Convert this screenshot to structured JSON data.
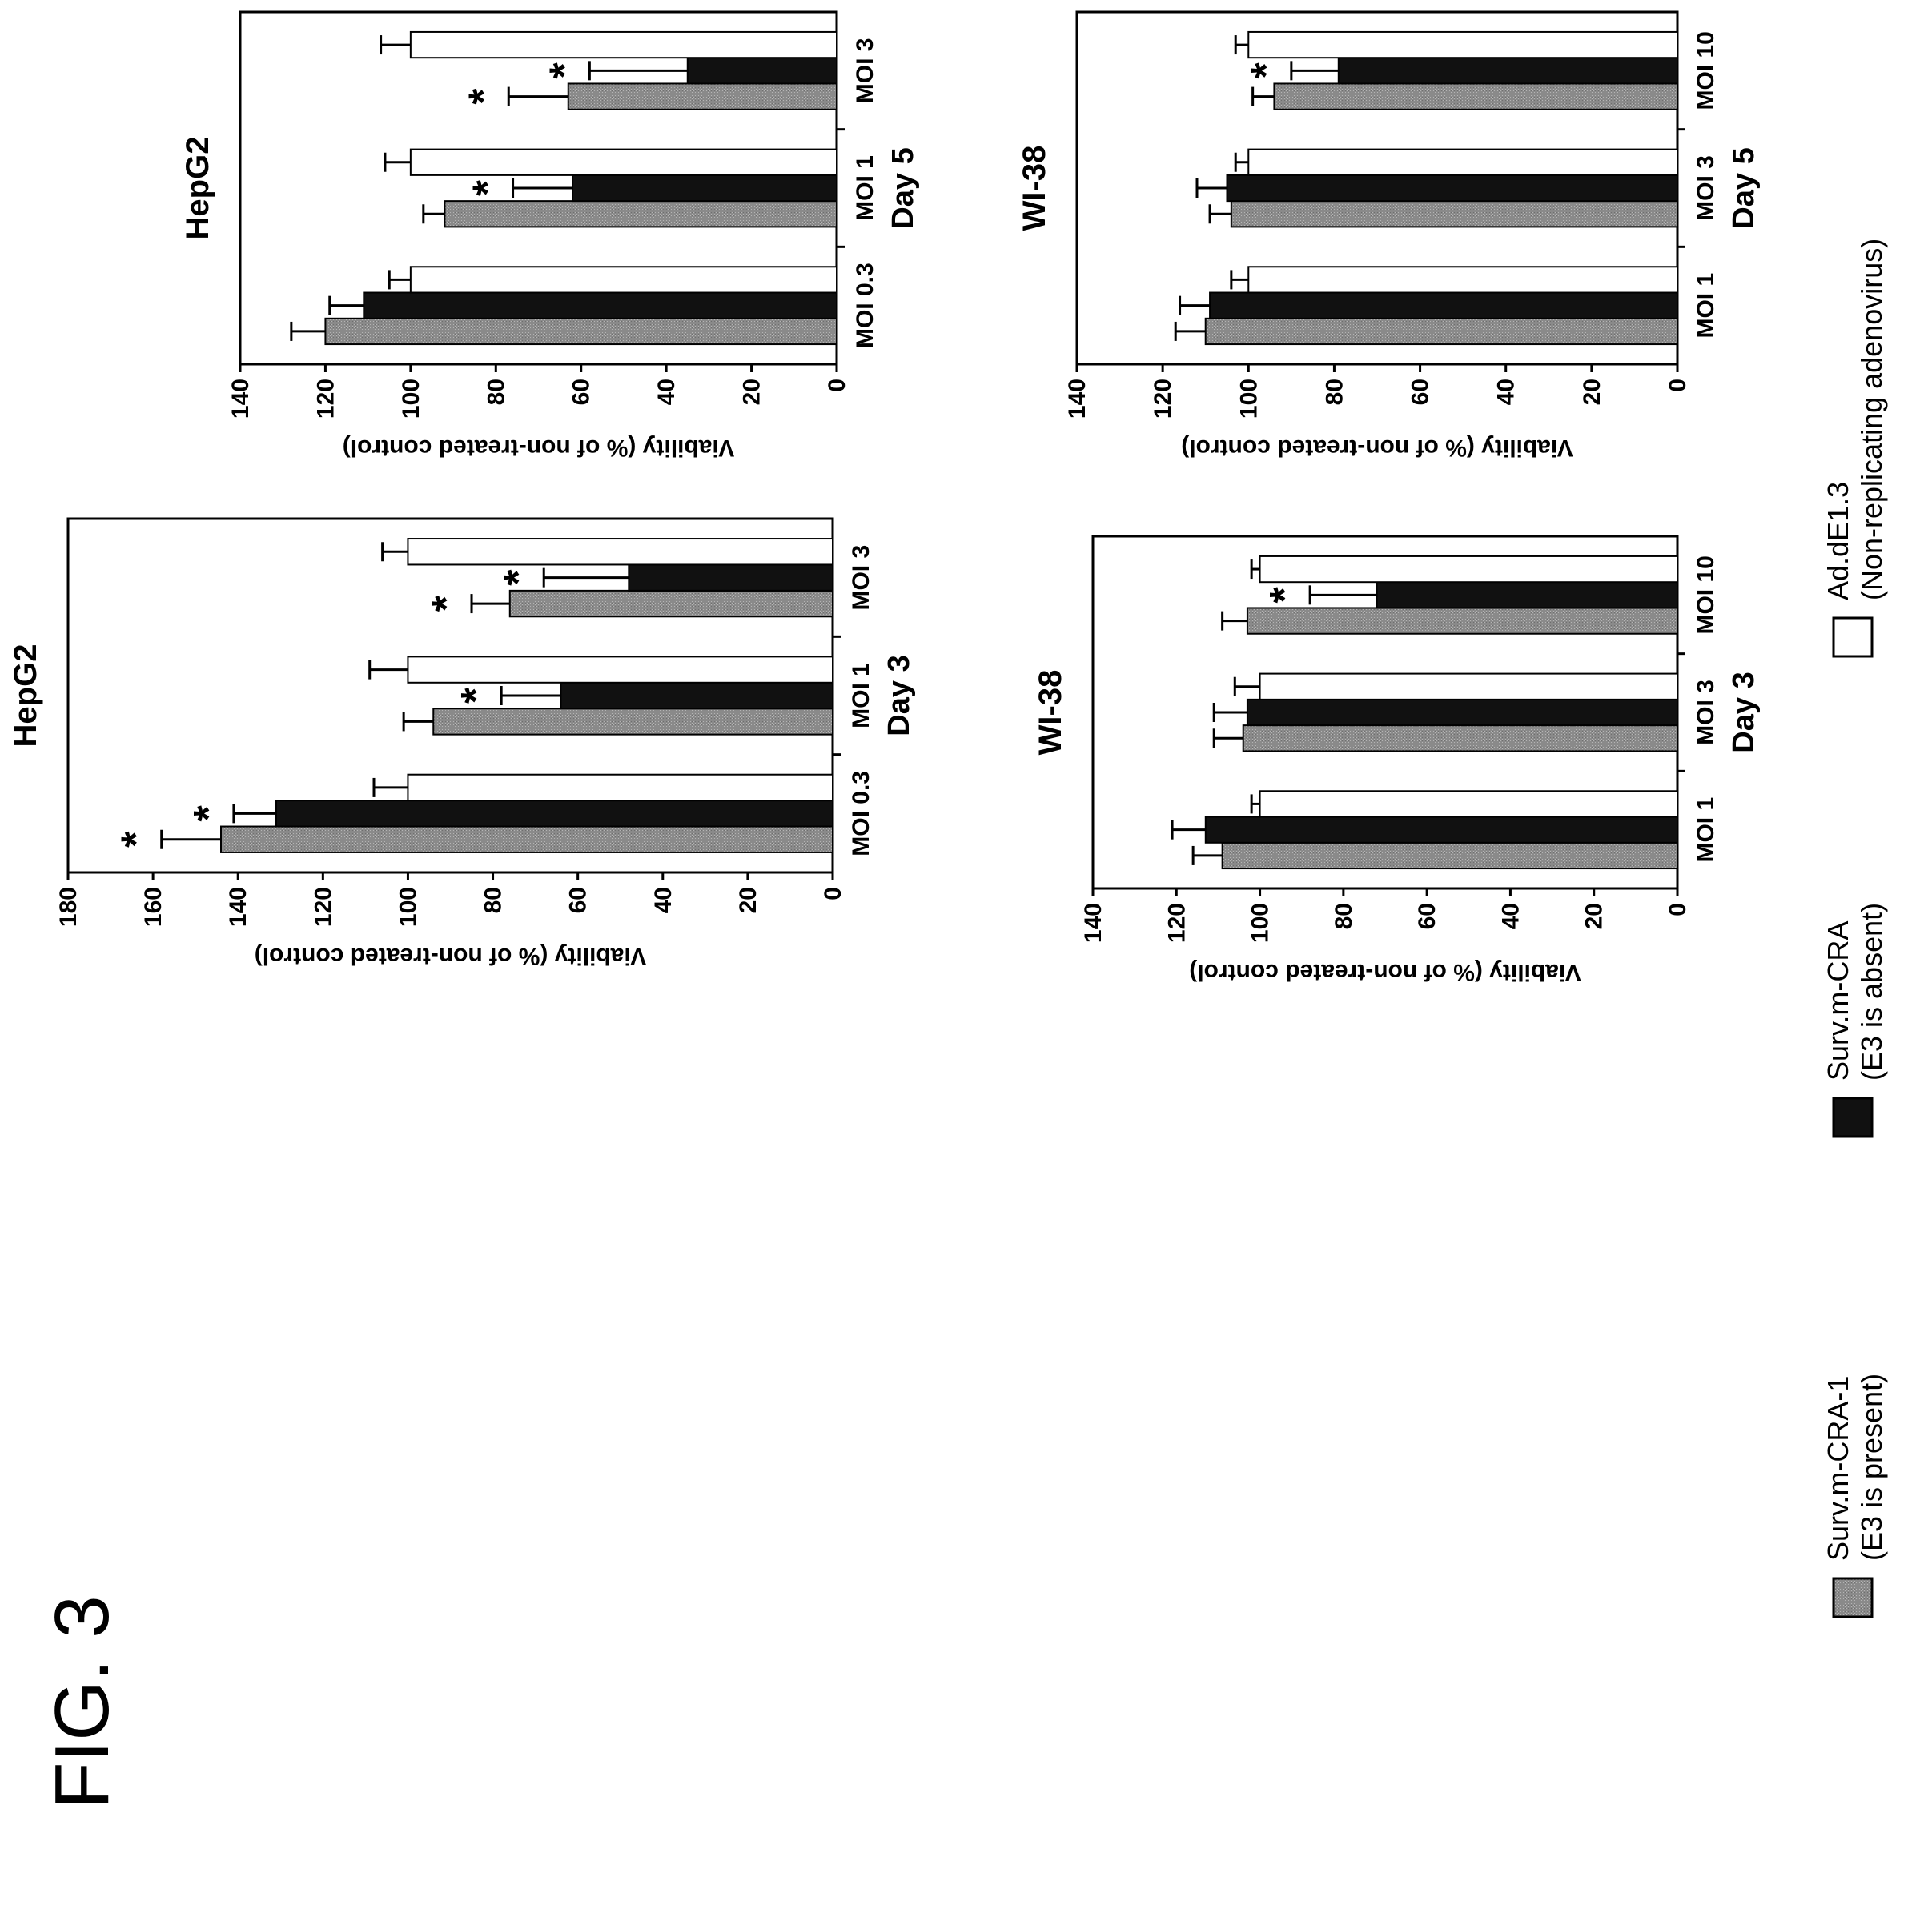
{
  "figure_label": "FIG. 3",
  "legend": [
    {
      "name_line1": "Surv.m-CRA-1",
      "name_line2": "(E3 is present)",
      "color": "#8a8a8a"
    },
    {
      "name_line1": "Surv.m-CRA",
      "name_line2": "(E3 is absent)",
      "color": "#111111"
    },
    {
      "name_line1": "Ad.dE1.3",
      "name_line2": "(Non-replicating adenovirus)",
      "color": "#ffffff"
    }
  ],
  "chart_data": [
    {
      "type": "bar",
      "title": "HepG2",
      "xlabel": "Day 3",
      "ylabel": "Viability (% of non-treated control)",
      "ylim": [
        0,
        180
      ],
      "yticks": [
        "0",
        "20",
        "40",
        "60",
        "80",
        "100",
        "120",
        "140",
        "160",
        "180"
      ],
      "categories": [
        "MOI 0.3",
        "MOI 1",
        "MOI 3"
      ],
      "series": [
        {
          "name": "Surv.m-CRA-1",
          "values": [
            144,
            94,
            76
          ],
          "errors": [
            14,
            7,
            9
          ],
          "stars": [
            "*",
            "",
            "*"
          ]
        },
        {
          "name": "Surv.m-CRA",
          "values": [
            131,
            64,
            48
          ],
          "errors": [
            10,
            14,
            20
          ],
          "stars": [
            "*",
            "*",
            "*"
          ]
        },
        {
          "name": "Ad.dE1.3",
          "values": [
            100,
            100,
            100
          ],
          "errors": [
            8,
            9,
            6
          ],
          "stars": [
            "",
            "",
            ""
          ]
        }
      ]
    },
    {
      "type": "bar",
      "title": "HepG2",
      "xlabel": "Day 5",
      "ylabel": "Viability (% of non-treated control)",
      "ylim": [
        0,
        140
      ],
      "yticks": [
        "0",
        "20",
        "40",
        "60",
        "80",
        "100",
        "120",
        "140"
      ],
      "categories": [
        "MOI 0.3",
        "MOI 1",
        "MOI 3"
      ],
      "series": [
        {
          "name": "Surv.m-CRA-1",
          "values": [
            120,
            92,
            63
          ],
          "errors": [
            8,
            5,
            14
          ],
          "stars": [
            "",
            "",
            "*"
          ]
        },
        {
          "name": "Surv.m-CRA",
          "values": [
            111,
            62,
            35
          ],
          "errors": [
            8,
            14,
            23
          ],
          "stars": [
            "",
            "*",
            "*"
          ]
        },
        {
          "name": "Ad.dE1.3",
          "values": [
            100,
            100,
            100
          ],
          "errors": [
            5,
            6,
            7
          ],
          "stars": [
            "",
            "",
            ""
          ]
        }
      ]
    },
    {
      "type": "bar",
      "title": "WI-38",
      "xlabel": "Day 3",
      "ylabel": "Viability (% of non-treated control)",
      "ylim": [
        0,
        140
      ],
      "yticks": [
        "0",
        "20",
        "40",
        "60",
        "80",
        "100",
        "120",
        "140"
      ],
      "categories": [
        "MOI 1",
        "MOI 3",
        "MOI 10"
      ],
      "series": [
        {
          "name": "Surv.m-CRA-1",
          "values": [
            109,
            104,
            103
          ],
          "errors": [
            7,
            7,
            6
          ],
          "stars": [
            "",
            "",
            ""
          ]
        },
        {
          "name": "Surv.m-CRA",
          "values": [
            113,
            103,
            72
          ],
          "errors": [
            8,
            8,
            16
          ],
          "stars": [
            "",
            "",
            "*"
          ]
        },
        {
          "name": "Ad.dE1.3",
          "values": [
            100,
            100,
            100
          ],
          "errors": [
            2,
            6,
            2
          ],
          "stars": [
            "",
            "",
            ""
          ]
        }
      ]
    },
    {
      "type": "bar",
      "title": "WI-38",
      "xlabel": "Day 5",
      "ylabel": "Viability (% of non-treated control)",
      "ylim": [
        0,
        140
      ],
      "yticks": [
        "0",
        "20",
        "40",
        "60",
        "80",
        "100",
        "120",
        "140"
      ],
      "categories": [
        "MOI 1",
        "MOI 3",
        "MOI 10"
      ],
      "series": [
        {
          "name": "Surv.m-CRA-1",
          "values": [
            110,
            104,
            94
          ],
          "errors": [
            7,
            5,
            5
          ],
          "stars": [
            "",
            "",
            ""
          ]
        },
        {
          "name": "Surv.m-CRA",
          "values": [
            109,
            105,
            79
          ],
          "errors": [
            7,
            7,
            11
          ],
          "stars": [
            "",
            "",
            "*"
          ]
        },
        {
          "name": "Ad.dE1.3",
          "values": [
            100,
            100,
            100
          ],
          "errors": [
            4,
            3,
            3
          ],
          "stars": [
            "",
            "",
            ""
          ]
        }
      ]
    }
  ]
}
